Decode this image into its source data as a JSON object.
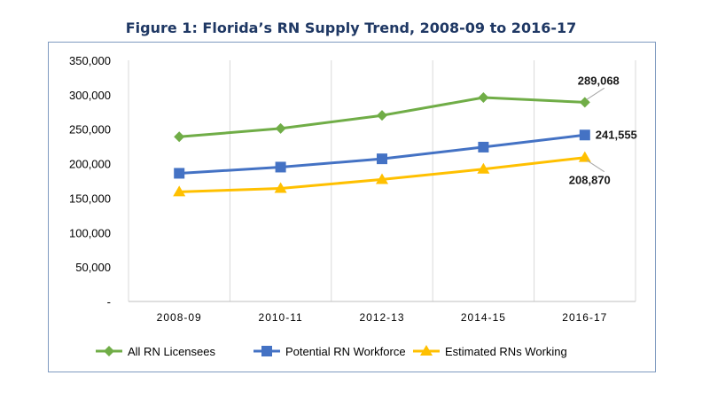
{
  "chart_data": {
    "type": "line",
    "title": "Figure 1: Florida’s RN Supply Trend, 2008-09 to 2016-17",
    "categories": [
      "2008-09",
      "2010-11",
      "2012-13",
      "2014-15",
      "2016-17"
    ],
    "ylim": [
      0,
      350000
    ],
    "y_ticks": [
      "-",
      "50,000",
      "100,000",
      "150,000",
      "200,000",
      "250,000",
      "300,000",
      "350,000"
    ],
    "grid": "vertical",
    "legend_position": "bottom",
    "series": [
      {
        "name": "All RN Licensees",
        "values": [
          239000,
          251000,
          270000,
          296000,
          289068
        ],
        "color": "#70ad47",
        "marker": "diamond",
        "end_label": "289,068"
      },
      {
        "name": "Potential RN Workforce",
        "values": [
          186000,
          195000,
          207000,
          224000,
          241555
        ],
        "color": "#4472c4",
        "marker": "square",
        "end_label": "241,555"
      },
      {
        "name": "Estimated RNs Working",
        "values": [
          159000,
          164000,
          177000,
          192000,
          208870
        ],
        "color": "#ffc000",
        "marker": "triangle",
        "end_label": "208,870"
      }
    ]
  }
}
